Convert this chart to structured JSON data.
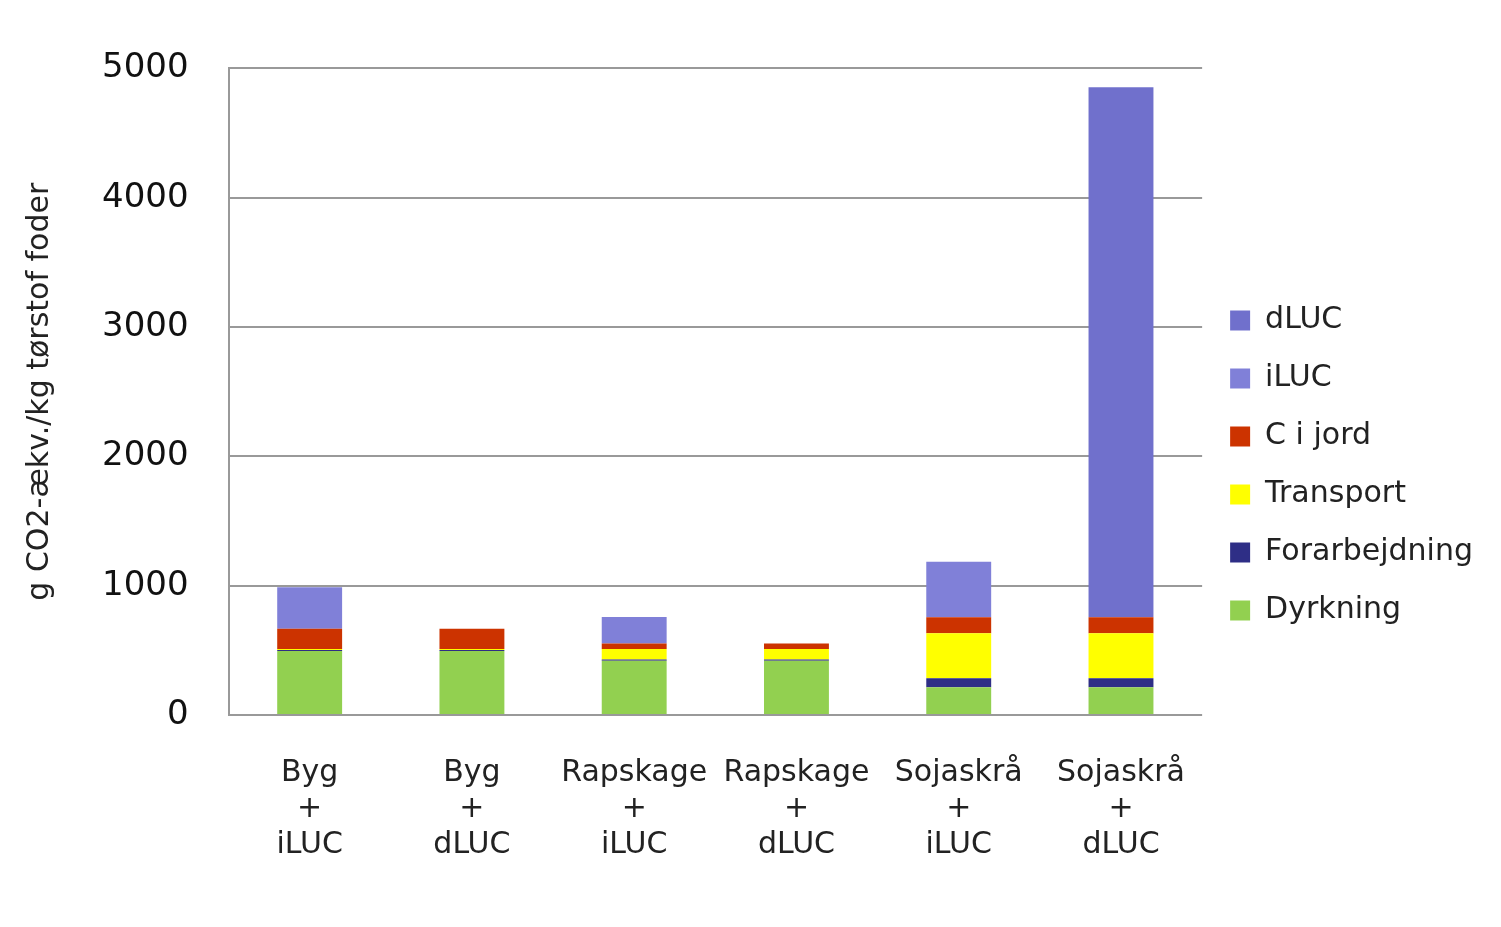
{
  "chart_data": {
    "type": "bar",
    "stacked": true,
    "ylabel": "g CO2-ækv./kg tørstof foder",
    "categories": [
      "Byg\n+\niLUC",
      "Byg\n+\ndLUC",
      "Rapskage\n+\niLUC",
      "Rapskage\n+\ndLUC",
      "Sojaskrå\n+\niLUC",
      "Sojaskrå\n+\ndLUC"
    ],
    "series": [
      {
        "name": "Dyrkning",
        "color": "#92d050",
        "values": [
          495,
          495,
          420,
          420,
          214,
          214
        ]
      },
      {
        "name": "Forarbejdning",
        "color": "#2e2e86",
        "values": [
          8,
          8,
          10,
          10,
          70,
          70
        ]
      },
      {
        "name": "Transport",
        "color": "#ffff00",
        "values": [
          7,
          7,
          80,
          80,
          348,
          348
        ]
      },
      {
        "name": "C i jord",
        "color": "#cc3300",
        "values": [
          157,
          157,
          42,
          42,
          123,
          123
        ]
      },
      {
        "name": "iLUC",
        "color": "#8080d8",
        "values": [
          320,
          null,
          206,
          null,
          430,
          null
        ]
      },
      {
        "name": "dLUC",
        "color": "#7070cc",
        "values": [
          null,
          null,
          null,
          null,
          null,
          4100
        ]
      }
    ],
    "ylim": [
      0,
      5000
    ],
    "yticks": [
      0,
      1000,
      2000,
      3000,
      4000,
      5000
    ],
    "grid": "y",
    "legend": "right"
  }
}
